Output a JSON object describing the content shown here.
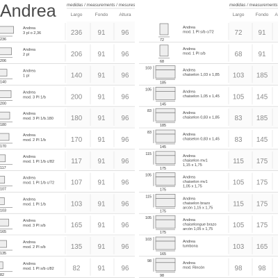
{
  "title": "Andrea",
  "header": {
    "measures_label": "medidas / measurements / mesures",
    "columns": [
      "Largo",
      "Fondo",
      "Altura"
    ]
  },
  "left_rows": [
    {
      "dim": "236",
      "name": "Andrea\n3 pl o 2,36",
      "values": [
        "236",
        "91",
        "96"
      ]
    },
    {
      "dim": "206",
      "name": "Andrea\n2 pl",
      "values": [
        "206",
        "91",
        "96"
      ]
    },
    {
      "dim": "140",
      "name": "Andrea\n1 pl",
      "values": [
        "140",
        "91",
        "96"
      ]
    },
    {
      "dim": "200",
      "name": "Andrea\nmod. 3 Pl 1/b",
      "values": [
        "200",
        "91",
        "96"
      ]
    },
    {
      "dim": "180",
      "name": "Andrea\nmod. 3 Pl 1/b.180",
      "values": [
        "180",
        "91",
        "96"
      ]
    },
    {
      "dim": "170",
      "name": "Andrea\nmod. 2 Pl 1/b",
      "values": [
        "170",
        "91",
        "96"
      ]
    },
    {
      "dim": "117",
      "name": "Andrea\nmod. 1 Pl 1/b c/82",
      "values": [
        "117",
        "91",
        "96"
      ]
    },
    {
      "dim": "107",
      "name": "Andrea\nmod. 1 Pl 1/b c/72",
      "values": [
        "107",
        "91",
        "96"
      ]
    },
    {
      "dim": "103",
      "name": "Andrea\nmod. 1 Pl 1/b",
      "values": [
        "103",
        "91",
        "96"
      ]
    },
    {
      "dim": "165",
      "name": "Andrea\nmod. 3 Pl s/b",
      "values": [
        "165",
        "91",
        "96"
      ]
    },
    {
      "dim": "135",
      "name": "Andrea\nmod. 2 Pl s/b",
      "values": [
        "135",
        "91",
        "96"
      ]
    },
    {
      "dim": "82",
      "name": "Andrea\nmod. 1 Pl s/b c/82",
      "values": [
        "82",
        "91",
        "96"
      ]
    }
  ],
  "right_rows": [
    {
      "side": "",
      "dim": "72",
      "name": "Andrea\nmod. 1 Pl s/b c/72",
      "values": [
        "72",
        "91",
        ""
      ]
    },
    {
      "side": "",
      "dim": "68",
      "name": "Andrea\nmod. 1 Pl s/b",
      "values": [
        "68",
        "91",
        ""
      ]
    },
    {
      "side": "103",
      "dim": "185",
      "name": "Andrea\nchaiselon 1,03 x 1,85",
      "values": [
        "103",
        "185",
        ""
      ]
    },
    {
      "side": "105",
      "dim": "145",
      "name": "Andrea\nchaiselon 1,05 x 1,45",
      "values": [
        "105",
        "145",
        ""
      ]
    },
    {
      "side": "83",
      "dim": "185",
      "name": "Andrea\nchaiselon 0,83 x 1,85",
      "values": [
        "83",
        "185",
        ""
      ]
    },
    {
      "side": "83",
      "dim": "145",
      "name": "Andrea\nchaiselon 0,83 x 1,45",
      "values": [
        "83",
        "145",
        ""
      ]
    },
    {
      "side": "115",
      "dim": "175",
      "name": "Andrea\nchaiselon mv1\n1,15 x 1,75",
      "values": [
        "115",
        "175",
        ""
      ]
    },
    {
      "side": "105",
      "dim": "175",
      "name": "Andrea\nchaiselon mv1\n1,05 x 1,75",
      "values": [
        "105",
        "175",
        ""
      ]
    },
    {
      "side": "115",
      "dim": "175",
      "name": "Andrea\nchaiselon brazo\narcón 1,15 x 1,75",
      "values": [
        "115",
        "175",
        ""
      ]
    },
    {
      "side": "105",
      "dim": "175",
      "name": "Andrea\nchaiselongue brazo\narcón 1,05 x 1,75",
      "values": [
        "105",
        "175",
        ""
      ]
    },
    {
      "side": "103",
      "dim": "165",
      "name": "Andrea\ntumbona",
      "values": [
        "103",
        "165",
        ""
      ]
    },
    {
      "side": "98",
      "dim": "98",
      "name": "Andrea\nmod. Rincón",
      "values": [
        "98",
        "98",
        ""
      ]
    }
  ]
}
